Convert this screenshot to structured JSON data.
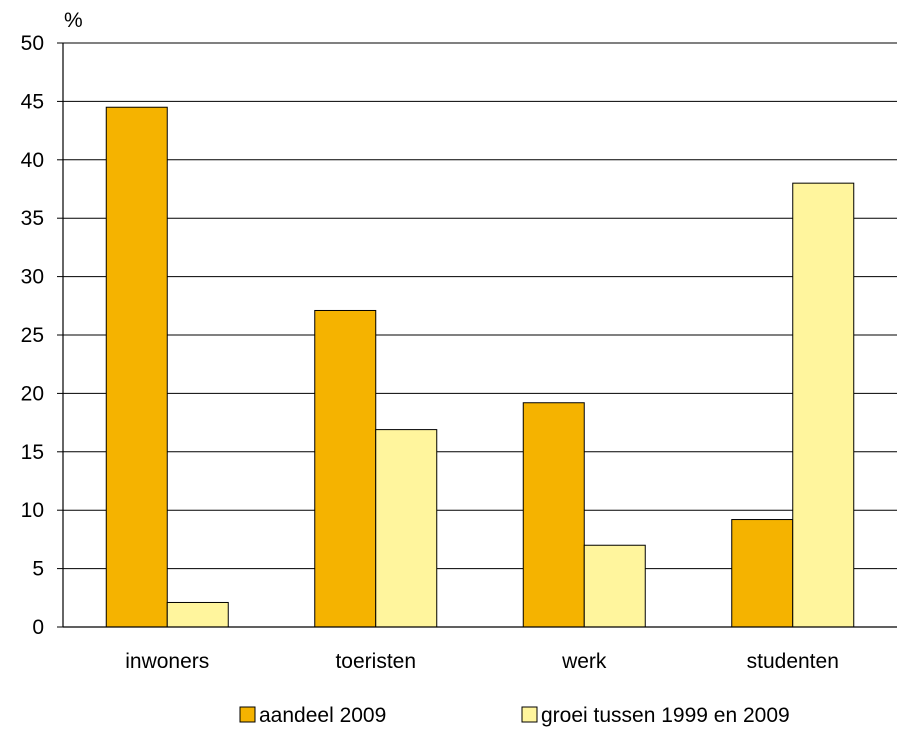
{
  "chart_data": {
    "type": "bar",
    "ylabel": "%",
    "ylim": [
      0,
      50
    ],
    "yticks": [
      "0",
      "5",
      "10",
      "15",
      "20",
      "25",
      "30",
      "35",
      "40",
      "45",
      "50"
    ],
    "categories": [
      "inwoners",
      "toeristen",
      "werk",
      "studenten"
    ],
    "series": [
      {
        "name": "aandeel 2009",
        "color": "#f5b300",
        "values": [
          44.5,
          27.1,
          19.2,
          9.2
        ]
      },
      {
        "name": "groei tussen 1999 en 2009",
        "color": "#fff59d",
        "values": [
          2.1,
          16.9,
          7.0,
          38.0
        ]
      }
    ],
    "grid": "horizontal",
    "legend_position": "bottom"
  }
}
